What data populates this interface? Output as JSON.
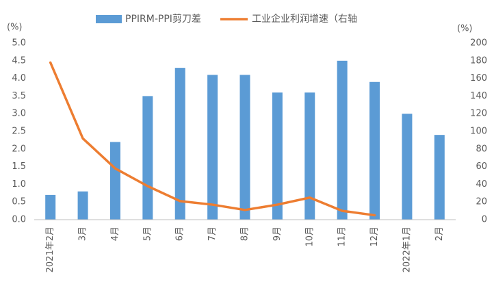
{
  "chart_data": {
    "type": "bar_line",
    "categories": [
      "2021年2月",
      "3月",
      "4月",
      "5月",
      "6月",
      "7月",
      "8月",
      "9月",
      "10月",
      "11月",
      "12月",
      "2022年1月",
      "2月"
    ],
    "series": [
      {
        "name": "PPIRM-PPI剪刀差",
        "type": "bar",
        "color": "#5b9bd5",
        "values": [
          0.7,
          0.8,
          2.2,
          3.5,
          4.3,
          4.1,
          4.1,
          3.6,
          3.6,
          4.5,
          3.9,
          3.0,
          2.4
        ]
      },
      {
        "name": "工业企业利润增速（右轴",
        "type": "line",
        "axis": "y2",
        "color": "#ed7d31",
        "values": [
          178,
          92,
          58,
          38,
          21,
          17,
          11,
          17,
          25,
          10,
          5,
          null,
          null
        ]
      }
    ],
    "y_unit_label": "(%)",
    "y2_unit_label": "(%)",
    "ylim": [
      0,
      5
    ],
    "yticks": [
      {
        "value": 0,
        "label": "0.0"
      },
      0.5,
      {
        "value": 1,
        "label": "1.0"
      },
      1.5,
      {
        "value": 2,
        "label": "2.0"
      },
      2.5,
      {
        "value": 3,
        "label": "3.0"
      },
      3.5,
      {
        "value": 4,
        "label": "4.0"
      },
      4.5,
      {
        "value": 5,
        "label": "5.0"
      }
    ],
    "y2lim": [
      0,
      200
    ],
    "y2ticks": [
      0,
      20,
      40,
      60,
      80,
      100,
      120,
      140,
      160,
      180,
      200
    ],
    "grid": false
  }
}
